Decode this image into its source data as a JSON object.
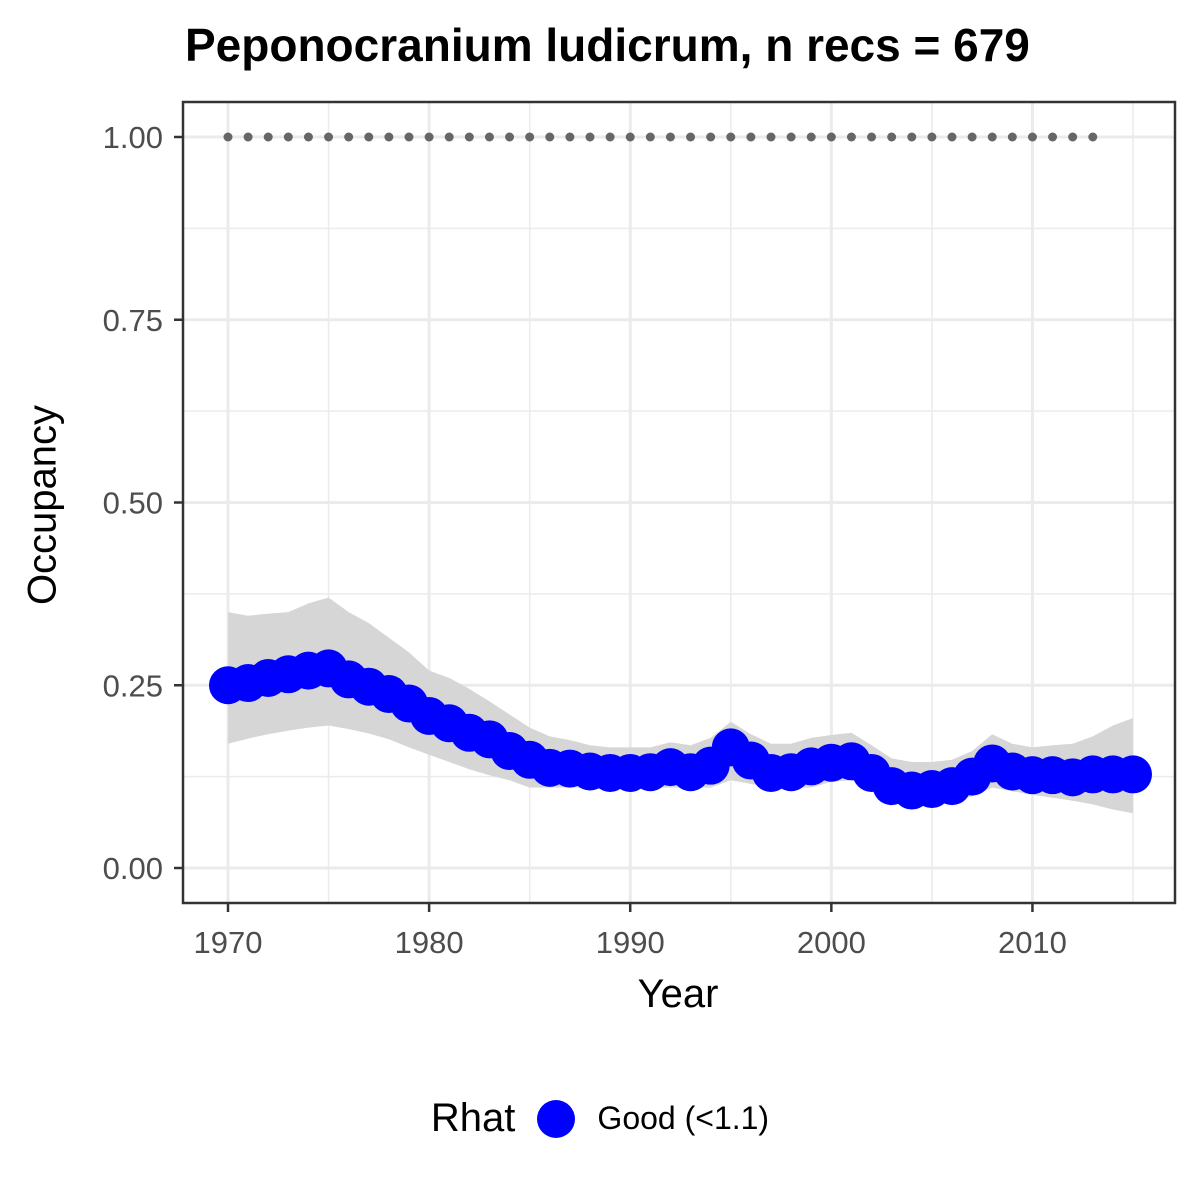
{
  "chart_data": {
    "type": "line",
    "title": "Peponocranium ludicrum, n recs = 679",
    "xlabel": "Year",
    "ylabel": "Occupancy",
    "xlim": [
      1968,
      2017
    ],
    "ylim": [
      -0.05,
      1.05
    ],
    "x_ticks": [
      1970,
      1980,
      1990,
      2000,
      2010
    ],
    "y_ticks": [
      0.0,
      0.25,
      0.5,
      0.75,
      1.0
    ],
    "y_tick_labels": [
      "0.00",
      "0.25",
      "0.50",
      "0.75",
      "1.00"
    ],
    "grid": true,
    "legend": {
      "title": "Rhat",
      "placement": "bottom",
      "entries": [
        {
          "label": "Good (<1.1)",
          "color": "#0000ff"
        }
      ]
    },
    "series": [
      {
        "name": "Good (<1.1)",
        "color": "#0000ff",
        "x": [
          1970,
          1971,
          1972,
          1973,
          1974,
          1975,
          1976,
          1977,
          1978,
          1979,
          1980,
          1981,
          1982,
          1983,
          1984,
          1985,
          1986,
          1987,
          1988,
          1989,
          1990,
          1991,
          1992,
          1993,
          1994,
          1995,
          1996,
          1997,
          1998,
          1999,
          2000,
          2001,
          2002,
          2003,
          2004,
          2005,
          2006,
          2007,
          2008,
          2009,
          2010,
          2011,
          2012,
          2013,
          2014,
          2015
        ],
        "y": [
          0.25,
          0.253,
          0.26,
          0.265,
          0.27,
          0.273,
          0.258,
          0.248,
          0.238,
          0.225,
          0.208,
          0.198,
          0.185,
          0.176,
          0.16,
          0.148,
          0.137,
          0.136,
          0.132,
          0.13,
          0.13,
          0.131,
          0.138,
          0.131,
          0.14,
          0.165,
          0.147,
          0.13,
          0.131,
          0.139,
          0.144,
          0.146,
          0.13,
          0.112,
          0.106,
          0.108,
          0.112,
          0.125,
          0.143,
          0.132,
          0.127,
          0.127,
          0.124,
          0.128,
          0.128,
          0.128
        ],
        "lower": [
          0.17,
          0.177,
          0.183,
          0.188,
          0.192,
          0.195,
          0.19,
          0.184,
          0.176,
          0.165,
          0.155,
          0.145,
          0.135,
          0.127,
          0.12,
          0.11,
          0.11,
          0.11,
          0.11,
          0.11,
          0.11,
          0.11,
          0.11,
          0.11,
          0.11,
          0.12,
          0.115,
          0.11,
          0.11,
          0.11,
          0.118,
          0.12,
          0.105,
          0.095,
          0.09,
          0.09,
          0.09,
          0.098,
          0.11,
          0.105,
          0.1,
          0.096,
          0.092,
          0.087,
          0.08,
          0.075
        ],
        "upper": [
          0.35,
          0.345,
          0.348,
          0.35,
          0.362,
          0.37,
          0.35,
          0.335,
          0.315,
          0.295,
          0.27,
          0.26,
          0.245,
          0.228,
          0.21,
          0.192,
          0.18,
          0.175,
          0.168,
          0.165,
          0.165,
          0.165,
          0.172,
          0.168,
          0.178,
          0.2,
          0.183,
          0.17,
          0.17,
          0.178,
          0.182,
          0.185,
          0.168,
          0.15,
          0.145,
          0.145,
          0.148,
          0.16,
          0.183,
          0.17,
          0.165,
          0.168,
          0.17,
          0.18,
          0.195,
          0.205
        ]
      },
      {
        "name": "",
        "color": "#666666",
        "style": "dotted",
        "x": [
          1970,
          1971,
          1972,
          1973,
          1974,
          1975,
          1976,
          1977,
          1978,
          1979,
          1980,
          1981,
          1982,
          1983,
          1984,
          1985,
          1986,
          1987,
          1988,
          1989,
          1990,
          1991,
          1992,
          1993,
          1994,
          1995,
          1996,
          1997,
          1998,
          1999,
          2000,
          2001,
          2002,
          2003,
          2004,
          2005,
          2006,
          2007,
          2008,
          2009,
          2010,
          2011,
          2012,
          2013
        ],
        "y": [
          1,
          1,
          1,
          1,
          1,
          1,
          1,
          1,
          1,
          1,
          1,
          1,
          1,
          1,
          1,
          1,
          1,
          1,
          1,
          1,
          1,
          1,
          1,
          1,
          1,
          1,
          1,
          1,
          1,
          1,
          1,
          1,
          1,
          1,
          1,
          1,
          1,
          1,
          1,
          1,
          1,
          1,
          1,
          1
        ]
      }
    ]
  }
}
